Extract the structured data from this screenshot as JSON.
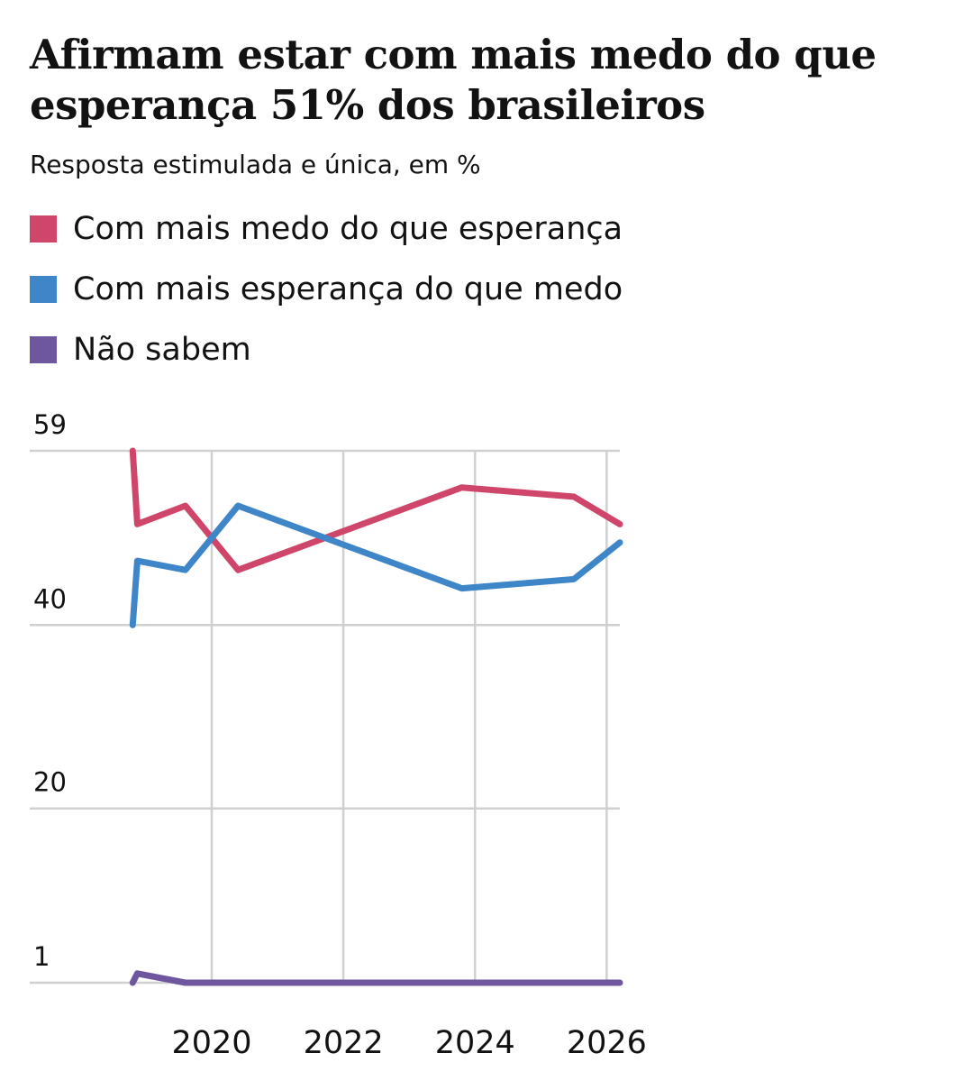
{
  "chart_data": {
    "type": "line",
    "title": "Afirmam estar com mais medo do que esperança 51% dos brasileiros",
    "subtitle": "Resposta estimulada e única, em %",
    "xlabel": "",
    "ylabel": "",
    "xlim": [
      2018.7,
      2026.2
    ],
    "ylim": [
      1,
      59
    ],
    "y_ticks": [
      59,
      40,
      20,
      1
    ],
    "x_ticks": [
      2020,
      2022,
      2024,
      2026
    ],
    "x_tick_labels": [
      "2020",
      "2022",
      "2024",
      "2026"
    ],
    "y_tick_labels": [
      "59",
      "40",
      "20",
      "1"
    ],
    "grid": true,
    "legend_position": "top-left",
    "series": [
      {
        "name": "Com mais medo do que esperança",
        "color": "#d0466a",
        "points": [
          [
            2018.8,
            59
          ],
          [
            2018.87,
            51
          ],
          [
            2019.6,
            53
          ],
          [
            2020.4,
            46
          ],
          [
            2023.8,
            55
          ],
          [
            2025.5,
            54
          ],
          [
            2026.2,
            51
          ]
        ]
      },
      {
        "name": "Com mais esperança do que medo",
        "color": "#3f86c9",
        "points": [
          [
            2018.8,
            40
          ],
          [
            2018.87,
            47
          ],
          [
            2019.6,
            46
          ],
          [
            2020.4,
            53
          ],
          [
            2023.8,
            44
          ],
          [
            2025.5,
            45
          ],
          [
            2026.2,
            49
          ]
        ]
      },
      {
        "name": "Não sabem",
        "color": "#6f57a0",
        "points": [
          [
            2018.8,
            1
          ],
          [
            2018.87,
            2
          ],
          [
            2019.6,
            1
          ],
          [
            2020.4,
            1
          ],
          [
            2023.8,
            1
          ],
          [
            2025.5,
            1
          ],
          [
            2026.2,
            1
          ]
        ]
      }
    ]
  }
}
